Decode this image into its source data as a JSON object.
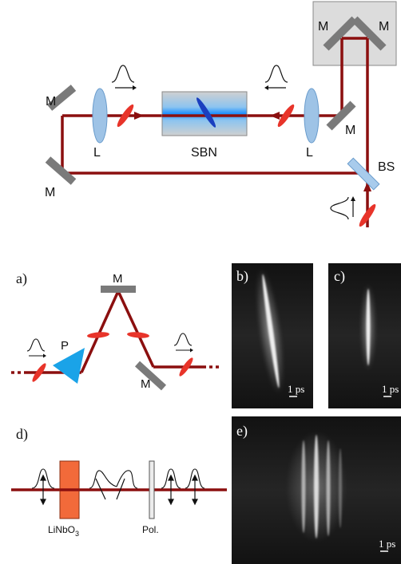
{
  "top_setup": {
    "mirror_label": "M",
    "lens_label": "L",
    "crystal_label": "SBN",
    "beamsplitter_label": "BS"
  },
  "panel_a": {
    "label": "a)",
    "prism_label": "P",
    "mirror_label": "M"
  },
  "panel_b": {
    "label": "b)",
    "scale": "1 ps"
  },
  "panel_c": {
    "label": "c)",
    "scale": "1 ps"
  },
  "panel_d": {
    "label": "d)",
    "crystal_label": "LiNbO",
    "crystal_subscript": "3",
    "polarizer_label": "Pol."
  },
  "panel_e": {
    "label": "e)",
    "scale": "1 ps"
  },
  "colors": {
    "beam": "#8b0f0f",
    "mirror": "#7a7a7a",
    "lens": "#9ec3e6",
    "waveplate": "#e8342a",
    "crystal_box": "#c9c9c9",
    "sbn_glow": "#1e90ff",
    "prism": "#1aa3e8",
    "linbo3": "#f26a3a"
  }
}
